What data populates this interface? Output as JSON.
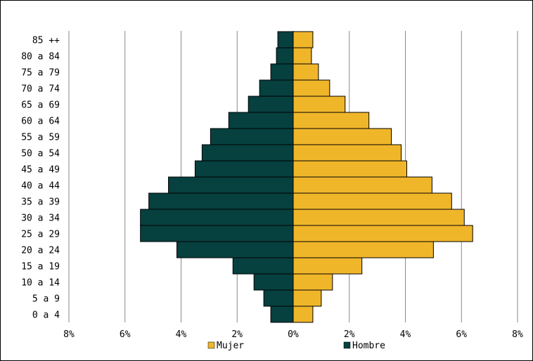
{
  "chart_data": {
    "type": "bar",
    "orientation": "horizontal",
    "categories": [
      "0 a 4",
      "5 a 9",
      "10 a 14",
      "15 a 19",
      "20 a 24",
      "25 a 29",
      "30 a 34",
      "35 a 39",
      "40 a 44",
      "45 a 49",
      "50 a 54",
      "55 a 59",
      "60 a 64",
      "65 a 69",
      "70 a 74",
      "75 a 79",
      "80 a 84",
      "85 ++"
    ],
    "series": [
      {
        "name": "Mujer",
        "color": "#F0B62A",
        "values": [
          0.7,
          1.0,
          1.4,
          2.45,
          5.0,
          6.4,
          6.1,
          5.65,
          4.95,
          4.05,
          3.85,
          3.5,
          2.7,
          1.85,
          1.3,
          0.9,
          0.65,
          0.7
        ]
      },
      {
        "name": "Hombre",
        "color": "#06403F",
        "values": [
          -0.8,
          -1.05,
          -1.4,
          -2.15,
          -4.15,
          -5.45,
          -5.45,
          -5.15,
          -4.45,
          -3.5,
          -3.25,
          -2.95,
          -2.3,
          -1.6,
          -1.2,
          -0.8,
          -0.6,
          -0.55
        ]
      }
    ],
    "xlim": [
      -8,
      8
    ],
    "x_ticks": [
      -8,
      -6,
      -4,
      -2,
      0,
      2,
      4,
      6,
      8
    ],
    "x_tick_labels": [
      "8%",
      "6%",
      "4%",
      "2%",
      "0%",
      "2%",
      "4%",
      "6%",
      "8%"
    ],
    "title": "",
    "xlabel": "",
    "ylabel": "",
    "grid": "vertical",
    "legend_position": "bottom",
    "legend": [
      {
        "label": "Mujer",
        "color": "#F0B62A"
      },
      {
        "label": "Hombre",
        "color": "#06403F"
      }
    ]
  }
}
